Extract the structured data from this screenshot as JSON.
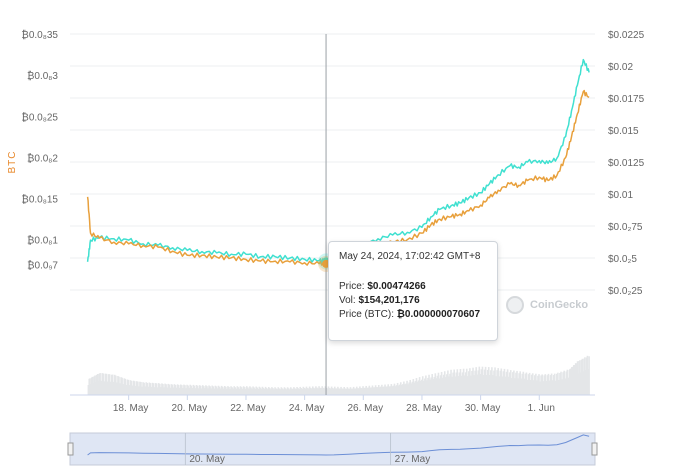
{
  "chart_data": {
    "type": "line",
    "title": "",
    "left_axis": {
      "label": "BTC",
      "ticks": [
        "₿0.0₈35",
        "₿0.0₈3",
        "₿0.0₈25",
        "₿0.0₈2",
        "₿0.0₈15",
        "₿0.0₈1",
        "₿0.0₉7"
      ],
      "ylim": [
        0,
        3.5e-07
      ]
    },
    "right_axis": {
      "label": "",
      "ticks": [
        "$0.0225",
        "$0.02",
        "$0.0175",
        "$0.015",
        "$0.0125",
        "$0.01",
        "$0.0₂75",
        "$0.0₂5",
        "$0.0₂25"
      ],
      "ylim": [
        0,
        0.0225
      ]
    },
    "x_ticks": [
      "18. May",
      "20. May",
      "22. May",
      "24. May",
      "26. May",
      "28. May",
      "30. May",
      "1. Jun"
    ],
    "navigator_ticks": [
      "20. May",
      "27. May"
    ],
    "series": [
      {
        "name": "Price",
        "axis": "right",
        "color": "#40e0d0",
        "x": [
          16.6,
          16.7,
          17.0,
          17.5,
          18.0,
          18.5,
          19.0,
          19.5,
          20.0,
          20.5,
          21.0,
          21.5,
          22.0,
          22.5,
          23.0,
          23.5,
          24.0,
          24.5,
          24.73,
          25.0,
          25.5,
          26.0,
          26.5,
          27.0,
          27.5,
          28.0,
          28.3,
          28.6,
          29.0,
          29.3,
          29.6,
          30.0,
          30.3,
          30.6,
          31.0,
          31.3,
          31.6,
          32.0,
          32.3,
          32.6,
          32.9,
          33.1,
          33.3,
          33.5,
          33.7
        ],
        "values": [
          0.0047,
          0.0064,
          0.0066,
          0.0065,
          0.0064,
          0.0061,
          0.006,
          0.0058,
          0.0056,
          0.0055,
          0.0054,
          0.0053,
          0.0053,
          0.0051,
          0.0051,
          0.005,
          0.0049,
          0.0048,
          0.00474,
          0.0048,
          0.0053,
          0.006,
          0.0065,
          0.0068,
          0.007,
          0.0074,
          0.0082,
          0.0088,
          0.0091,
          0.0093,
          0.0097,
          0.0101,
          0.0108,
          0.0115,
          0.0122,
          0.0121,
          0.0125,
          0.0126,
          0.0124,
          0.0128,
          0.0145,
          0.0165,
          0.0185,
          0.0205,
          0.0195
        ]
      },
      {
        "name": "Price (BTC)",
        "axis": "left",
        "color": "#e8a03c",
        "x": [
          16.6,
          16.7,
          17.0,
          17.5,
          18.0,
          18.5,
          19.0,
          19.5,
          20.0,
          20.5,
          21.0,
          21.5,
          22.0,
          22.5,
          23.0,
          23.5,
          24.0,
          24.5,
          24.73,
          25.0,
          25.5,
          26.0,
          26.5,
          27.0,
          27.5,
          28.0,
          28.3,
          28.6,
          29.0,
          29.3,
          29.6,
          30.0,
          30.3,
          30.6,
          31.0,
          31.3,
          31.6,
          32.0,
          32.3,
          32.6,
          32.9,
          33.1,
          33.3,
          33.5,
          33.7
        ],
        "values": [
          1.52e-07,
          1.08e-07,
          1.02e-07,
          9.7e-08,
          9.5e-08,
          9.3e-08,
          9.1e-08,
          8.6e-08,
          8.1e-08,
          8.1e-08,
          7.9e-08,
          7.8e-08,
          7.6e-08,
          7.4e-08,
          7.4e-08,
          7.3e-08,
          7.2e-08,
          7.1e-08,
          7.06e-08,
          7.2e-08,
          7.8e-08,
          8.5e-08,
          9.2e-08,
          9.7e-08,
          1e-07,
          1.08e-07,
          1.18e-07,
          1.25e-07,
          1.28e-07,
          1.31e-07,
          1.35e-07,
          1.42e-07,
          1.51e-07,
          1.6e-07,
          1.68e-07,
          1.66e-07,
          1.72e-07,
          1.76e-07,
          1.72e-07,
          1.78e-07,
          2e-07,
          2.25e-07,
          2.53e-07,
          2.8e-07,
          2.73e-07
        ]
      }
    ],
    "volume": {
      "x": [
        16.6,
        17.0,
        17.5,
        18.0,
        18.5,
        19.0,
        19.5,
        20.0,
        20.5,
        21.0,
        21.5,
        22.0,
        22.5,
        23.0,
        23.5,
        24.0,
        24.5,
        25.0,
        25.5,
        26.0,
        26.5,
        27.0,
        27.5,
        28.0,
        28.5,
        29.0,
        29.5,
        30.0,
        30.5,
        31.0,
        31.5,
        32.0,
        32.5,
        33.0,
        33.3,
        33.7
      ],
      "values": [
        150,
        210,
        190,
        140,
        120,
        110,
        100,
        95,
        90,
        85,
        80,
        80,
        75,
        70,
        70,
        75,
        80,
        75,
        70,
        80,
        90,
        100,
        130,
        170,
        200,
        230,
        240,
        260,
        250,
        230,
        210,
        190,
        200,
        240,
        320,
        380
      ],
      "max": 450
    },
    "crosshair": {
      "x": 24.73
    },
    "tooltip": {
      "date": "May 24, 2024, 17:02:42 GMT+8",
      "price_label": "Price:",
      "price": "$0.00474266",
      "vol_label": "Vol:",
      "vol": "$154,201,176",
      "btc_label": "Price (BTC):",
      "btc": "₿0.000000070607"
    },
    "watermark": "CoinGecko",
    "grid": true,
    "colors": {
      "price": "#40e0d0",
      "btc": "#e8a03c",
      "navigator_line": "#6c8fd6",
      "navigator_fill": "#dfe6f4"
    }
  }
}
